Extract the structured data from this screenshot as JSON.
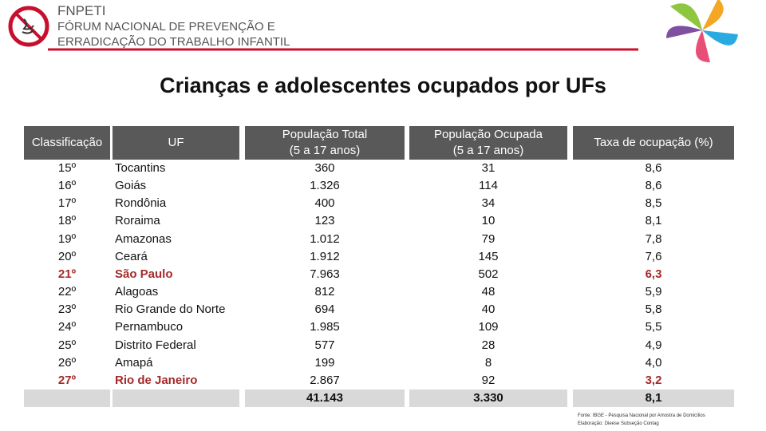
{
  "header": {
    "org": "FNPETI",
    "name_lines": [
      "FÓRUM NACIONAL DE PREVENÇÃO E",
      "ERRADICAÇÃO DO TRABALHO INFANTIL"
    ]
  },
  "title": "Crianças e adolescentes ocupados por UFs",
  "table": {
    "highlight_color": "#a52a2a",
    "columns": [
      [
        "Classificação"
      ],
      [
        "UF"
      ],
      [
        "População Total",
        "(5 a 17 anos)"
      ],
      [
        "População Ocupada",
        "(5 a 17 anos)"
      ],
      [
        "Taxa de ocupação (%)"
      ]
    ],
    "rows": [
      {
        "cells": [
          "15º",
          "Tocantins",
          "360",
          "31",
          "8,6"
        ]
      },
      {
        "cells": [
          "16º",
          "Goiás",
          "1.326",
          "114",
          "8,6"
        ]
      },
      {
        "cells": [
          "17º",
          "Rondônia",
          "400",
          "34",
          "8,5"
        ]
      },
      {
        "cells": [
          "18º",
          "Roraima",
          "123",
          "10",
          "8,1"
        ]
      },
      {
        "cells": [
          "19º",
          "Amazonas",
          "1.012",
          "79",
          "7,8"
        ]
      },
      {
        "cells": [
          "20º",
          "Ceará",
          "1.912",
          "145",
          "7,6"
        ]
      },
      {
        "cells": [
          "21º",
          "São Paulo",
          "7.963",
          "502",
          "6,3"
        ],
        "highlighted": true
      },
      {
        "cells": [
          "22º",
          "Alagoas",
          "812",
          "48",
          "5,9"
        ]
      },
      {
        "cells": [
          "23º",
          "Rio Grande do Norte",
          "694",
          "40",
          "5,8"
        ]
      },
      {
        "cells": [
          "24º",
          "Pernambuco",
          "1.985",
          "109",
          "5,5"
        ]
      },
      {
        "cells": [
          "25º",
          "Distrito Federal",
          "577",
          "28",
          "4,9"
        ]
      },
      {
        "cells": [
          "26º",
          "Amapá",
          "199",
          "8",
          "4,0"
        ]
      },
      {
        "cells": [
          "27º",
          "Rio de Janeiro",
          "2.867",
          "92",
          "3,2"
        ],
        "highlighted": true
      }
    ],
    "total": [
      "41.143",
      "3.330",
      "8,1"
    ]
  },
  "footer": [
    "Fonte: IBGE - Pesquisa Nacional por Amostra de Domicílios",
    "Elaboração: Dieese Subseção Contag"
  ]
}
